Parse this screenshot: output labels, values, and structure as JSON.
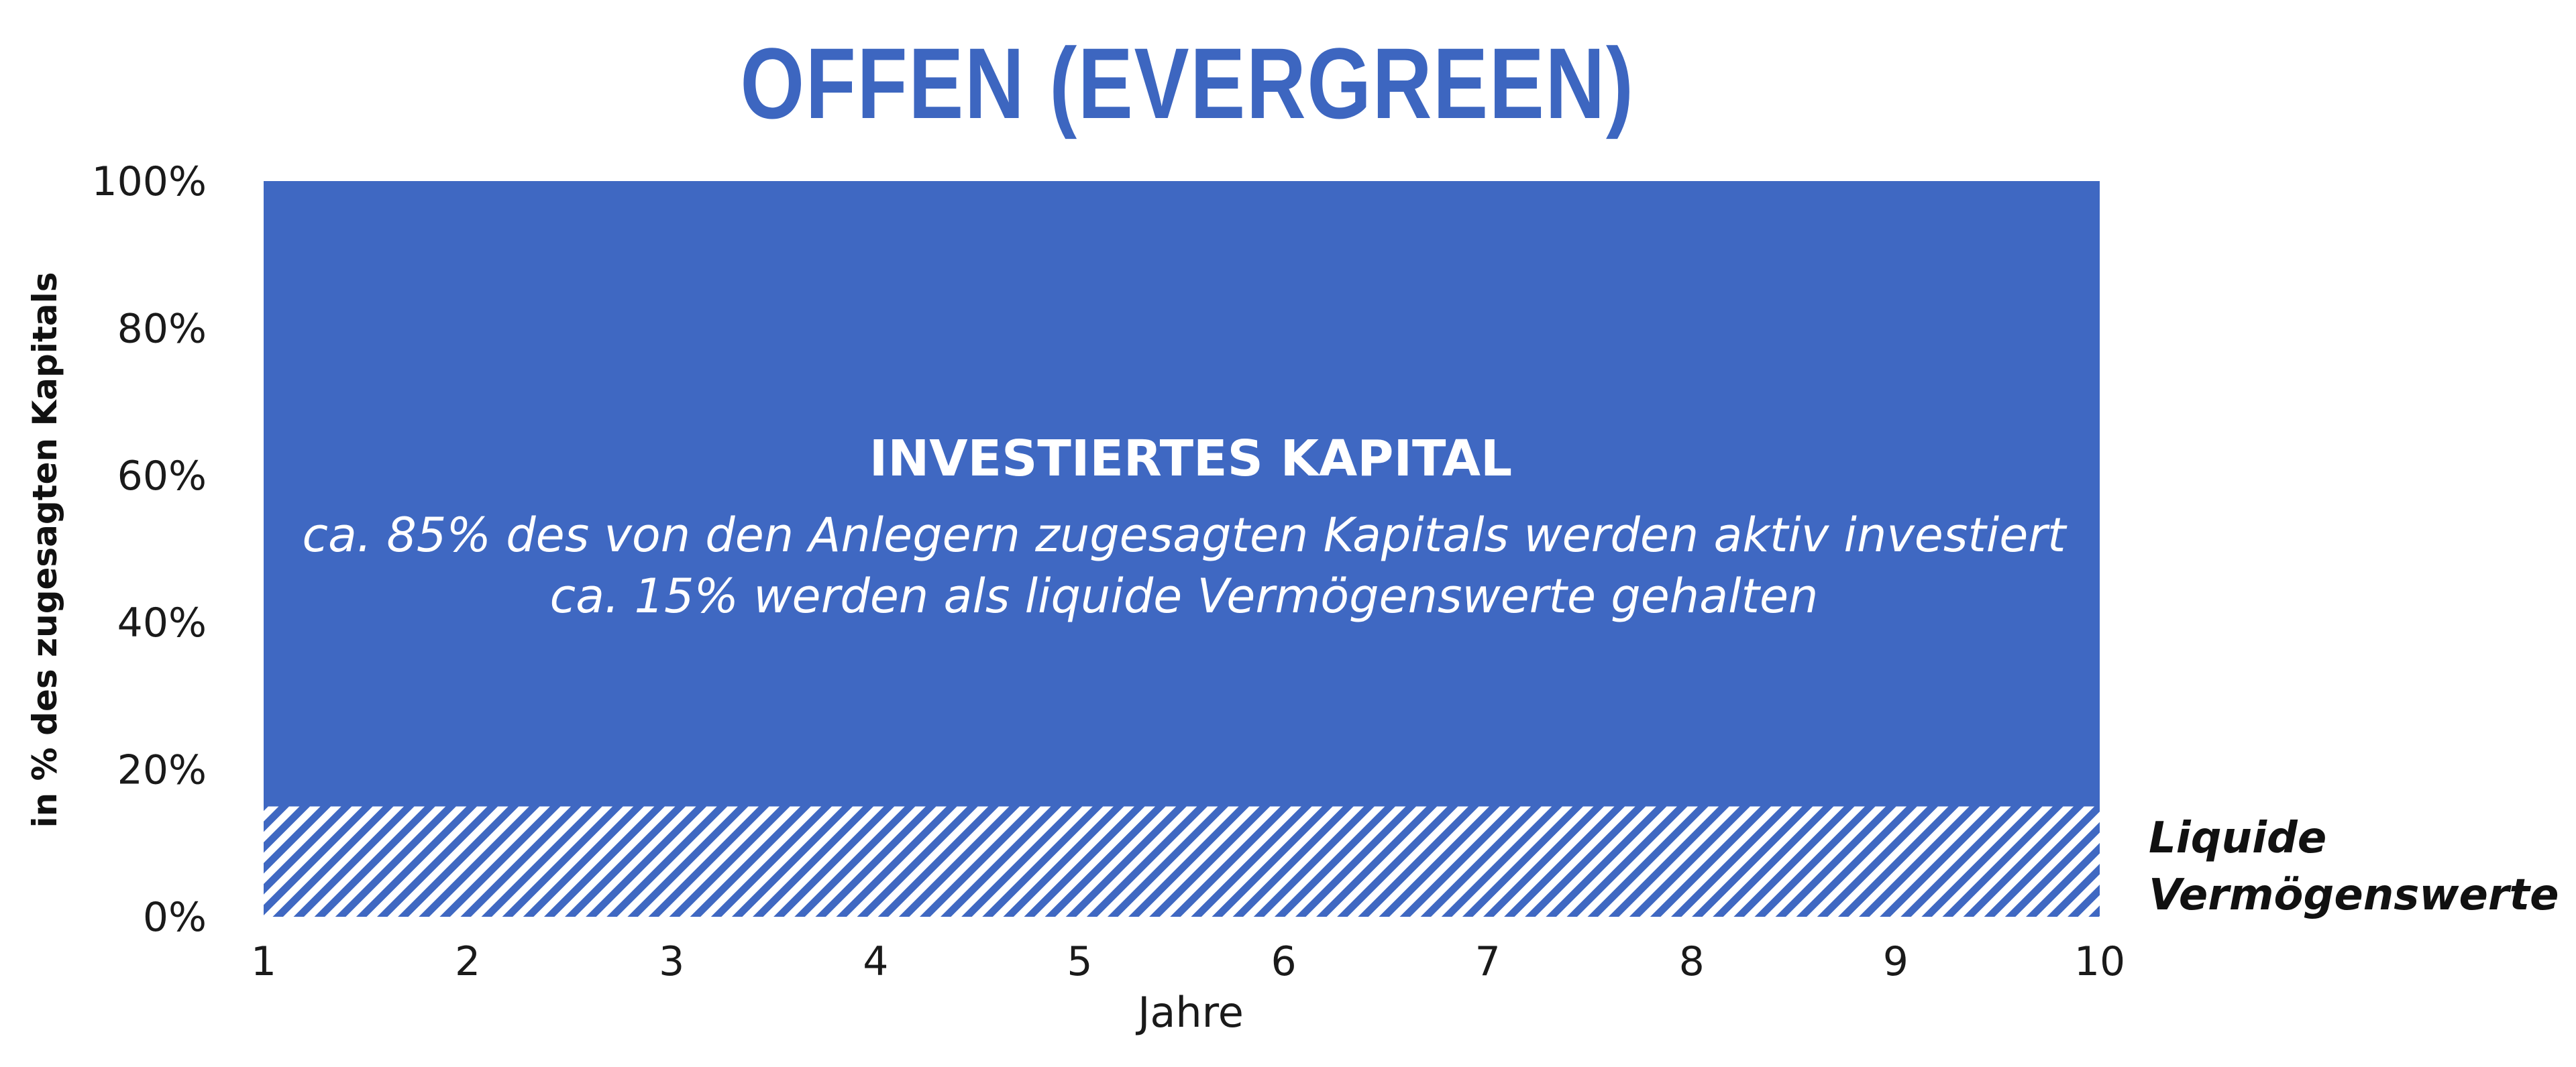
{
  "title": "OFFEN (EVERGREEN)",
  "colors": {
    "title": "#3d66c0",
    "invested": "#3f68c2",
    "liquid_stripe": "#3f68c2",
    "liquid_bg": "#ffffff"
  },
  "chart_data": {
    "type": "area",
    "title": "OFFEN (EVERGREEN)",
    "xlabel": "Jahre",
    "ylabel": "in % des zugesagten Kapitals",
    "x": [
      1,
      2,
      3,
      4,
      5,
      6,
      7,
      8,
      9,
      10
    ],
    "xlim": [
      1,
      10
    ],
    "ylim": [
      0,
      100
    ],
    "y_ticks": [
      "0%",
      "20%",
      "40%",
      "60%",
      "80%",
      "100%"
    ],
    "y_tick_values": [
      0,
      20,
      40,
      60,
      80,
      100
    ],
    "stacked": true,
    "grid": false,
    "series": [
      {
        "name": "Liquide Vermögenswerte",
        "values": [
          15,
          15,
          15,
          15,
          15,
          15,
          15,
          15,
          15,
          15
        ],
        "pattern": "diagonal-hatch"
      },
      {
        "name": "INVESTIERTES KAPITAL",
        "values": [
          85,
          85,
          85,
          85,
          85,
          85,
          85,
          85,
          85,
          85
        ]
      }
    ],
    "annotation": {
      "title": "INVESTIERTES KAPITAL",
      "lines": [
        "ca. 85% des von den Anlegern zugesagten Kapitals werden aktiv investiert",
        "ca. 15% werden als liquide Vermögenswerte gehalten"
      ]
    },
    "side_label": [
      "Liquide",
      "Vermögenswerte"
    ]
  }
}
